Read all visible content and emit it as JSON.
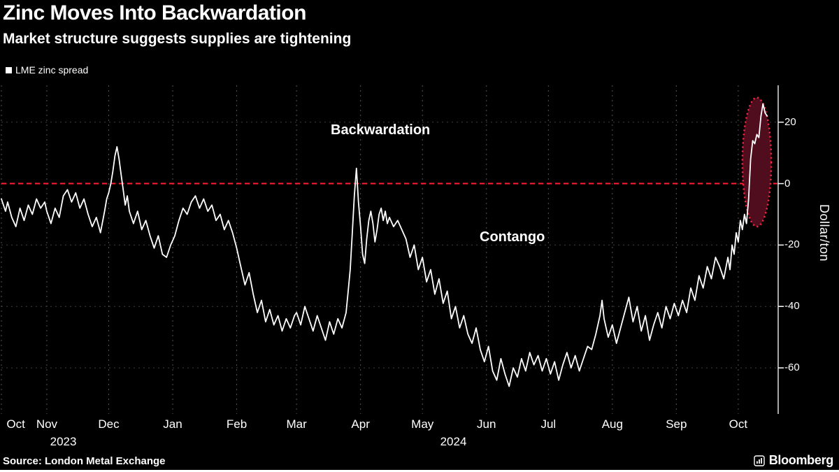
{
  "header": {
    "title": "Zinc Moves Into Backwardation",
    "subtitle": "Market structure suggests supplies are tightening"
  },
  "legend": {
    "label": "LME zinc spread"
  },
  "annotations": {
    "backwardation": "Backwardation",
    "contango": "Contango"
  },
  "axis": {
    "y_label": "Dollar/ton",
    "y_ticks": [
      20,
      0,
      -20,
      -40,
      -60
    ],
    "x_ticks": [
      {
        "label": "Oct",
        "day": 7
      },
      {
        "label": "Nov",
        "day": 22
      },
      {
        "label": "Dec",
        "day": 52
      },
      {
        "label": "Jan",
        "day": 83
      },
      {
        "label": "Feb",
        "day": 114
      },
      {
        "label": "Mar",
        "day": 143
      },
      {
        "label": "Apr",
        "day": 174
      },
      {
        "label": "May",
        "day": 204
      },
      {
        "label": "Jun",
        "day": 235
      },
      {
        "label": "Jul",
        "day": 265
      },
      {
        "label": "Aug",
        "day": 296
      },
      {
        "label": "Sep",
        "day": 327
      },
      {
        "label": "Oct",
        "day": 357
      }
    ],
    "year_labels": [
      {
        "label": "2023",
        "day": 30
      },
      {
        "label": "2024",
        "day": 219
      }
    ]
  },
  "footer": {
    "source": "Source: London Metal Exchange",
    "brand": "Bloomberg"
  },
  "colors": {
    "background": "#000000",
    "line": "#ffffff",
    "zero_line": "#ff2038",
    "grid_vertical": "#555555",
    "grid_horizontal": "#3f3f3f",
    "highlight_fill": "#4f0d1d",
    "highlight_stroke": "#ff2743",
    "axis_spine": "#ffffff"
  },
  "chart_data": {
    "type": "line",
    "title": "Zinc Moves Into Backwardation",
    "subtitle": "Market structure suggests supplies are tightening",
    "ylabel": "Dollar/ton",
    "xlabel": "Oct 2023 - Oct 2024",
    "ylim": [
      -75,
      32
    ],
    "x_domain": [
      0,
      376
    ],
    "zero_line": 0,
    "legend_position": "top-left",
    "grid": true,
    "highlight_ellipse": {
      "x_day": 366,
      "y_value": 7,
      "rx_days": 7,
      "ry_values": 21
    },
    "series": [
      {
        "name": "LME zinc spread",
        "color": "#ffffff",
        "points": [
          [
            0,
            -5
          ],
          [
            2,
            -9
          ],
          [
            3,
            -6
          ],
          [
            5,
            -11
          ],
          [
            7,
            -14
          ],
          [
            9,
            -8
          ],
          [
            11,
            -12
          ],
          [
            13,
            -7
          ],
          [
            15,
            -10
          ],
          [
            17,
            -5
          ],
          [
            19,
            -8
          ],
          [
            21,
            -6
          ],
          [
            22,
            -9
          ],
          [
            24,
            -13
          ],
          [
            26,
            -8
          ],
          [
            28,
            -11
          ],
          [
            30,
            -4
          ],
          [
            32,
            -2
          ],
          [
            34,
            -6
          ],
          [
            36,
            -3
          ],
          [
            38,
            -8
          ],
          [
            40,
            -5
          ],
          [
            42,
            -10
          ],
          [
            44,
            -14
          ],
          [
            46,
            -11
          ],
          [
            48,
            -16
          ],
          [
            50,
            -9
          ],
          [
            51,
            -5
          ],
          [
            52,
            -3
          ],
          [
            53,
            0
          ],
          [
            54,
            4
          ],
          [
            55,
            9
          ],
          [
            56,
            12
          ],
          [
            57,
            8
          ],
          [
            58,
            3
          ],
          [
            59,
            -2
          ],
          [
            60,
            -7
          ],
          [
            61,
            -4
          ],
          [
            62,
            -9
          ],
          [
            64,
            -13
          ],
          [
            66,
            -9
          ],
          [
            68,
            -15
          ],
          [
            70,
            -12
          ],
          [
            72,
            -17
          ],
          [
            74,
            -21
          ],
          [
            76,
            -17
          ],
          [
            78,
            -23
          ],
          [
            80,
            -24
          ],
          [
            82,
            -20
          ],
          [
            84,
            -17
          ],
          [
            86,
            -12
          ],
          [
            88,
            -8
          ],
          [
            90,
            -10
          ],
          [
            92,
            -6
          ],
          [
            94,
            -4
          ],
          [
            96,
            -8
          ],
          [
            98,
            -5
          ],
          [
            100,
            -9
          ],
          [
            102,
            -7
          ],
          [
            104,
            -12
          ],
          [
            106,
            -10
          ],
          [
            108,
            -15
          ],
          [
            110,
            -12
          ],
          [
            112,
            -16
          ],
          [
            114,
            -21
          ],
          [
            116,
            -27
          ],
          [
            118,
            -33
          ],
          [
            120,
            -29
          ],
          [
            122,
            -36
          ],
          [
            124,
            -42
          ],
          [
            126,
            -38
          ],
          [
            128,
            -45
          ],
          [
            130,
            -41
          ],
          [
            132,
            -46
          ],
          [
            134,
            -43
          ],
          [
            136,
            -48
          ],
          [
            138,
            -44
          ],
          [
            140,
            -47
          ],
          [
            142,
            -43
          ],
          [
            143,
            -42
          ],
          [
            145,
            -46
          ],
          [
            147,
            -40
          ],
          [
            149,
            -44
          ],
          [
            151,
            -48
          ],
          [
            153,
            -43
          ],
          [
            155,
            -47
          ],
          [
            157,
            -51
          ],
          [
            159,
            -45
          ],
          [
            161,
            -49
          ],
          [
            163,
            -44
          ],
          [
            165,
            -47
          ],
          [
            167,
            -42
          ],
          [
            168,
            -35
          ],
          [
            169,
            -28
          ],
          [
            170,
            -16
          ],
          [
            171,
            -4
          ],
          [
            172,
            5
          ],
          [
            173,
            -6
          ],
          [
            174,
            -14
          ],
          [
            175,
            -23
          ],
          [
            176,
            -26
          ],
          [
            177,
            -18
          ],
          [
            178,
            -12
          ],
          [
            179,
            -9
          ],
          [
            180,
            -13
          ],
          [
            181,
            -19
          ],
          [
            182,
            -15
          ],
          [
            183,
            -10
          ],
          [
            184,
            -8
          ],
          [
            185,
            -12
          ],
          [
            186,
            -9
          ],
          [
            187,
            -13
          ],
          [
            188,
            -11
          ],
          [
            190,
            -14
          ],
          [
            192,
            -12
          ],
          [
            194,
            -15
          ],
          [
            196,
            -18
          ],
          [
            198,
            -24
          ],
          [
            200,
            -20
          ],
          [
            202,
            -28
          ],
          [
            204,
            -24
          ],
          [
            206,
            -32
          ],
          [
            208,
            -28
          ],
          [
            210,
            -36
          ],
          [
            212,
            -31
          ],
          [
            214,
            -39
          ],
          [
            216,
            -35
          ],
          [
            218,
            -44
          ],
          [
            220,
            -40
          ],
          [
            222,
            -47
          ],
          [
            224,
            -43
          ],
          [
            226,
            -49
          ],
          [
            228,
            -52
          ],
          [
            230,
            -47
          ],
          [
            232,
            -54
          ],
          [
            234,
            -58
          ],
          [
            236,
            -53
          ],
          [
            238,
            -61
          ],
          [
            240,
            -64
          ],
          [
            242,
            -57
          ],
          [
            244,
            -62
          ],
          [
            246,
            -66
          ],
          [
            248,
            -60
          ],
          [
            250,
            -63
          ],
          [
            252,
            -57
          ],
          [
            254,
            -61
          ],
          [
            256,
            -55
          ],
          [
            258,
            -59
          ],
          [
            260,
            -56
          ],
          [
            262,
            -61
          ],
          [
            264,
            -57
          ],
          [
            266,
            -62
          ],
          [
            268,
            -58
          ],
          [
            270,
            -64
          ],
          [
            272,
            -59
          ],
          [
            274,
            -55
          ],
          [
            276,
            -60
          ],
          [
            278,
            -56
          ],
          [
            280,
            -61
          ],
          [
            282,
            -57
          ],
          [
            284,
            -53
          ],
          [
            286,
            -54
          ],
          [
            288,
            -49
          ],
          [
            290,
            -43
          ],
          [
            291,
            -38
          ],
          [
            292,
            -44
          ],
          [
            294,
            -50
          ],
          [
            296,
            -46
          ],
          [
            298,
            -52
          ],
          [
            300,
            -47
          ],
          [
            302,
            -42
          ],
          [
            304,
            -37
          ],
          [
            306,
            -45
          ],
          [
            308,
            -40
          ],
          [
            310,
            -48
          ],
          [
            312,
            -43
          ],
          [
            314,
            -51
          ],
          [
            316,
            -46
          ],
          [
            318,
            -42
          ],
          [
            320,
            -47
          ],
          [
            322,
            -40
          ],
          [
            324,
            -44
          ],
          [
            326,
            -39
          ],
          [
            328,
            -43
          ],
          [
            330,
            -38
          ],
          [
            332,
            -42
          ],
          [
            334,
            -34
          ],
          [
            336,
            -38
          ],
          [
            338,
            -30
          ],
          [
            340,
            -34
          ],
          [
            342,
            -27
          ],
          [
            344,
            -31
          ],
          [
            346,
            -24
          ],
          [
            348,
            -27
          ],
          [
            350,
            -31
          ],
          [
            352,
            -24
          ],
          [
            353,
            -28
          ],
          [
            354,
            -20
          ],
          [
            355,
            -23
          ],
          [
            356,
            -16
          ],
          [
            357,
            -19
          ],
          [
            358,
            -12
          ],
          [
            359,
            -15
          ],
          [
            360,
            -10
          ],
          [
            361,
            -13
          ],
          [
            362,
            -5
          ],
          [
            363,
            8
          ],
          [
            364,
            14
          ],
          [
            365,
            13
          ],
          [
            366,
            16
          ],
          [
            367,
            15
          ],
          [
            368,
            22
          ],
          [
            369,
            26
          ],
          [
            370,
            23
          ],
          [
            371,
            22
          ]
        ]
      }
    ]
  }
}
